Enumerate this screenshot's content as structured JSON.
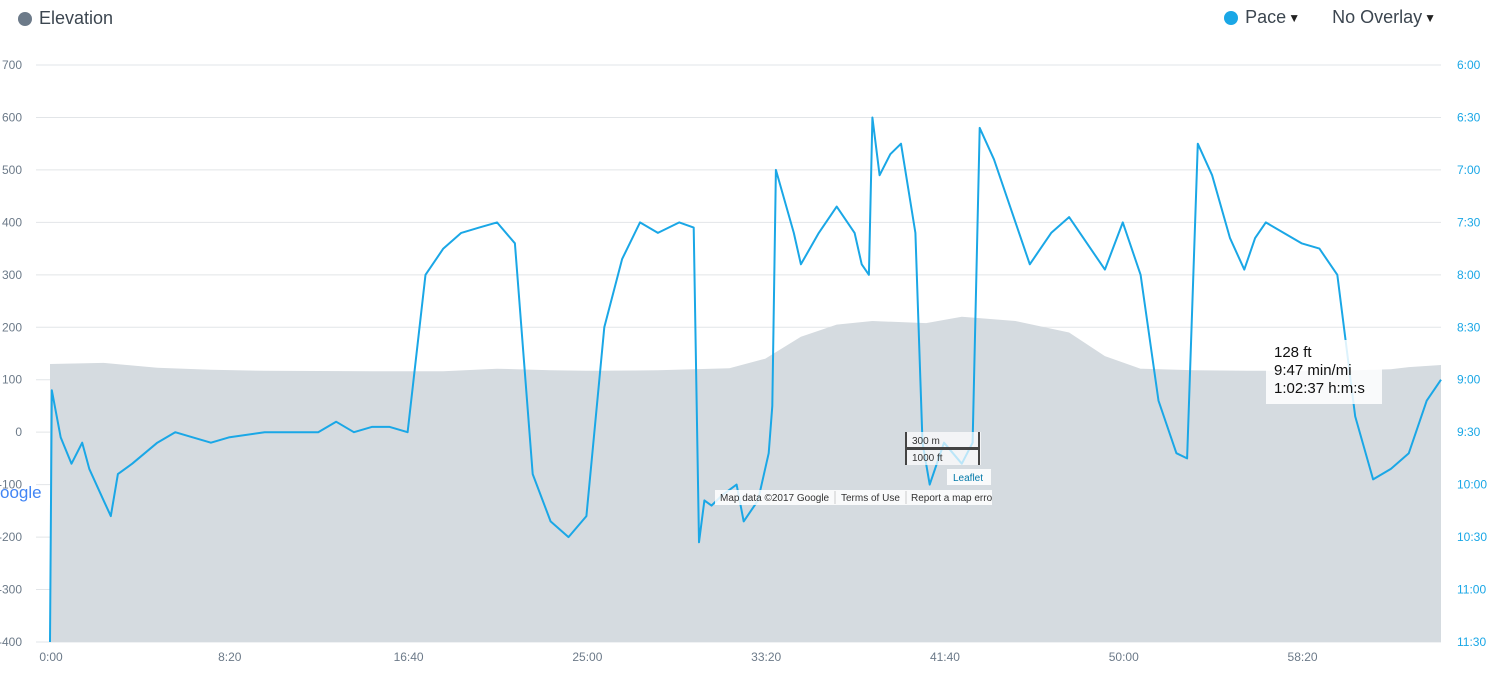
{
  "legend": {
    "elevation_label": "Elevation",
    "elevation_color": "#6c7a89",
    "pace_label": "Pace",
    "pace_color": "#1aa7e6",
    "overlay_label": "No Overlay"
  },
  "tooltip": {
    "line1": "128 ft",
    "line2": "9:47 min/mi",
    "line3": "1:02:37 h:m:s"
  },
  "map_overlay": {
    "google": "oogle",
    "scale_m": "300 m",
    "scale_ft": "1000 ft",
    "leaflet": "Leaflet",
    "map_data": "Map data ©2017 Google",
    "terms": "Terms of Use",
    "report": "Report a map erro"
  },
  "chart_data": {
    "type": "line",
    "left_axis": {
      "ticks": [
        "700",
        "600",
        "500",
        "400",
        "300",
        "200",
        "100",
        "0",
        "-100",
        "-200",
        "-300",
        "-400"
      ],
      "ylim": [
        -400,
        700
      ]
    },
    "right_axis": {
      "ticks": [
        "6:00",
        "6:30",
        "7:00",
        "7:30",
        "8:00",
        "8:30",
        "9:00",
        "9:30",
        "10:00",
        "10:30",
        "11:00",
        "11:30"
      ],
      "ylim_min_per_mi": [
        6.0,
        11.5
      ],
      "inverted": true
    },
    "x_axis": {
      "ticks": [
        "0:00",
        "8:20",
        "16:40",
        "25:00",
        "33:20",
        "41:40",
        "50:00",
        "58:20"
      ],
      "xlim_seconds": [
        0,
        3890
      ]
    },
    "series": [
      {
        "kind": "area",
        "axis": "left",
        "points": [
          [
            0,
            130
          ],
          [
            150,
            132
          ],
          [
            300,
            123
          ],
          [
            450,
            119
          ],
          [
            600,
            117
          ],
          [
            900,
            116
          ],
          [
            1100,
            116
          ],
          [
            1250,
            121
          ],
          [
            1400,
            118
          ],
          [
            1500,
            117
          ],
          [
            1700,
            118
          ],
          [
            1900,
            122
          ],
          [
            2000,
            140
          ],
          [
            2100,
            182
          ],
          [
            2200,
            205
          ],
          [
            2300,
            212
          ],
          [
            2450,
            208
          ],
          [
            2550,
            220
          ],
          [
            2700,
            212
          ],
          [
            2850,
            190
          ],
          [
            2950,
            145
          ],
          [
            3050,
            121
          ],
          [
            3200,
            118
          ],
          [
            3350,
            117
          ],
          [
            3500,
            117
          ],
          [
            3650,
            118
          ],
          [
            3750,
            120
          ],
          [
            3800,
            124
          ],
          [
            3890,
            128
          ]
        ]
      },
      {
        "kind": "line",
        "axis": "right",
        "points": [
          [
            0,
            11.5
          ],
          [
            5,
            9.1
          ],
          [
            30,
            9.55
          ],
          [
            60,
            9.8
          ],
          [
            90,
            9.6
          ],
          [
            110,
            9.85
          ],
          [
            150,
            10.15
          ],
          [
            170,
            10.3
          ],
          [
            190,
            9.9
          ],
          [
            230,
            9.8
          ],
          [
            300,
            9.6
          ],
          [
            350,
            9.5
          ],
          [
            400,
            9.55
          ],
          [
            450,
            9.6
          ],
          [
            500,
            9.55
          ],
          [
            600,
            9.5
          ],
          [
            700,
            9.5
          ],
          [
            750,
            9.5
          ],
          [
            800,
            9.4
          ],
          [
            850,
            9.5
          ],
          [
            900,
            9.45
          ],
          [
            950,
            9.45
          ],
          [
            1000,
            9.5
          ],
          [
            1050,
            8.0
          ],
          [
            1100,
            7.75
          ],
          [
            1150,
            7.6
          ],
          [
            1200,
            7.55
          ],
          [
            1250,
            7.5
          ],
          [
            1300,
            7.7
          ],
          [
            1350,
            9.9
          ],
          [
            1400,
            10.35
          ],
          [
            1450,
            10.5
          ],
          [
            1500,
            10.3
          ],
          [
            1550,
            8.5
          ],
          [
            1600,
            7.85
          ],
          [
            1650,
            7.5
          ],
          [
            1700,
            7.6
          ],
          [
            1760,
            7.5
          ],
          [
            1800,
            7.55
          ],
          [
            1815,
            10.55
          ],
          [
            1830,
            10.15
          ],
          [
            1850,
            10.2
          ],
          [
            1880,
            10.1
          ],
          [
            1920,
            10.0
          ],
          [
            1940,
            10.35
          ],
          [
            1980,
            10.15
          ],
          [
            2010,
            9.7
          ],
          [
            2020,
            9.25
          ],
          [
            2030,
            7.0
          ],
          [
            2080,
            7.6
          ],
          [
            2100,
            7.9
          ],
          [
            2150,
            7.6
          ],
          [
            2200,
            7.35
          ],
          [
            2250,
            7.6
          ],
          [
            2270,
            7.9
          ],
          [
            2290,
            8.0
          ],
          [
            2300,
            6.5
          ],
          [
            2320,
            7.05
          ],
          [
            2350,
            6.85
          ],
          [
            2380,
            6.75
          ],
          [
            2420,
            7.6
          ],
          [
            2440,
            9.6
          ],
          [
            2460,
            10.0
          ],
          [
            2500,
            9.6
          ],
          [
            2550,
            9.8
          ],
          [
            2580,
            9.6
          ],
          [
            2600,
            6.6
          ],
          [
            2640,
            6.9
          ],
          [
            2700,
            7.5
          ],
          [
            2740,
            7.9
          ],
          [
            2770,
            7.75
          ],
          [
            2800,
            7.6
          ],
          [
            2850,
            7.45
          ],
          [
            2900,
            7.7
          ],
          [
            2950,
            7.95
          ],
          [
            3000,
            7.5
          ],
          [
            3050,
            8.0
          ],
          [
            3100,
            9.2
          ],
          [
            3150,
            9.7
          ],
          [
            3180,
            9.75
          ],
          [
            3210,
            6.75
          ],
          [
            3250,
            7.05
          ],
          [
            3300,
            7.65
          ],
          [
            3340,
            7.95
          ],
          [
            3370,
            7.65
          ],
          [
            3400,
            7.5
          ],
          [
            3450,
            7.6
          ],
          [
            3500,
            7.7
          ],
          [
            3550,
            7.75
          ],
          [
            3600,
            8.0
          ],
          [
            3650,
            9.35
          ],
          [
            3700,
            9.95
          ],
          [
            3750,
            9.85
          ],
          [
            3800,
            9.7
          ],
          [
            3850,
            9.2
          ],
          [
            3890,
            9.0
          ]
        ]
      }
    ]
  }
}
